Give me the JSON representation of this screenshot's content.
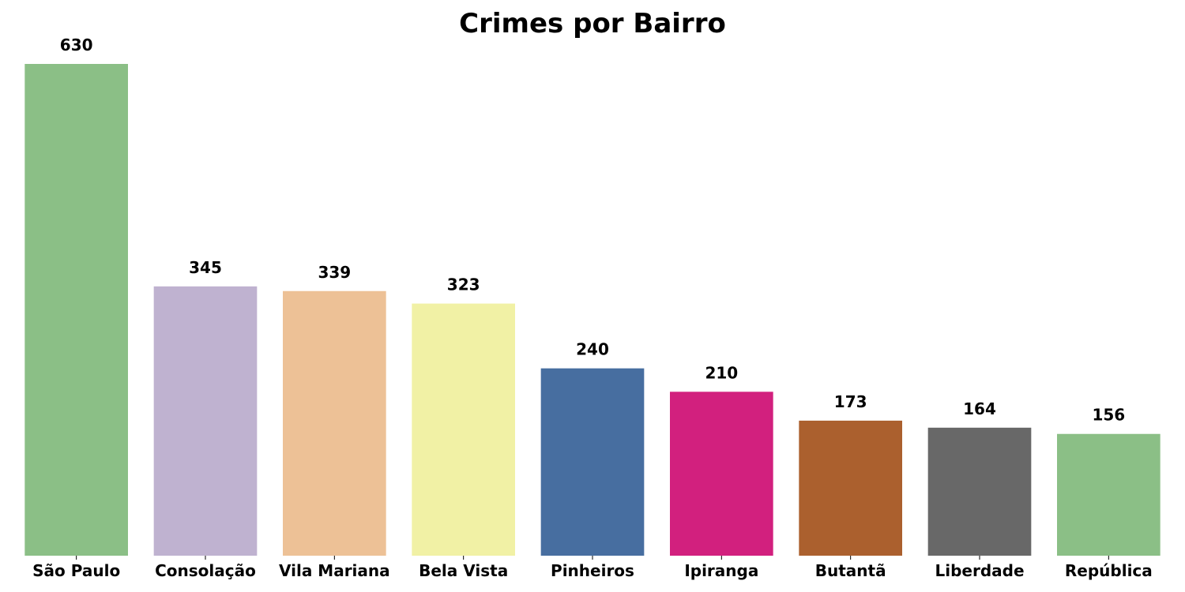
{
  "chart_data": {
    "type": "bar",
    "title": "Crimes por Bairro",
    "xlabel": "",
    "ylabel": "",
    "categories": [
      "São Paulo",
      "Consolação",
      "Vila Mariana",
      "Bela Vista",
      "Pinheiros",
      "Ipiranga",
      "Butantã",
      "Liberdade",
      "República"
    ],
    "values": [
      630,
      345,
      339,
      323,
      240,
      210,
      173,
      164,
      156
    ],
    "colors": [
      "#8bbf86",
      "#bfb2d0",
      "#edc196",
      "#f1f1a5",
      "#476ea0",
      "#d2207e",
      "#ab602e",
      "#686868",
      "#8bbf86"
    ],
    "ylim": [
      0,
      630
    ],
    "grid": false,
    "legend": "none",
    "data_labels": true
  }
}
